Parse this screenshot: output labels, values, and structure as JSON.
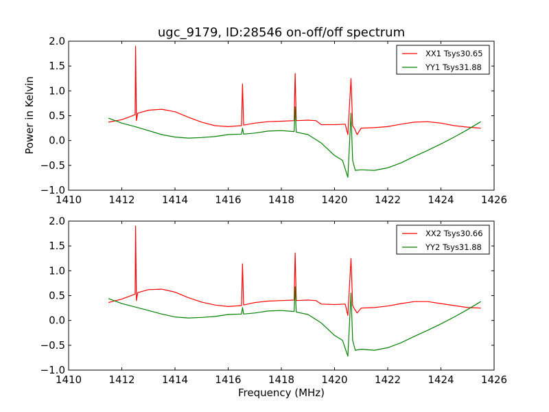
{
  "chart_data": [
    {
      "type": "line",
      "title": "ugc_9179, ID:28546 on-off/off spectrum",
      "xlabel": "",
      "ylabel": "Power in Kelvin",
      "xlim": [
        1410,
        1426
      ],
      "ylim": [
        -1.0,
        2.0
      ],
      "xticks": [
        "1410",
        "1412",
        "1414",
        "1416",
        "1418",
        "1420",
        "1422",
        "1424",
        "1426"
      ],
      "yticks": [
        "2.0",
        "1.5",
        "1.0",
        "0.5",
        "0.0",
        "−0.5",
        "−1.0"
      ],
      "grid": false,
      "legend": "top-right",
      "series": [
        {
          "name": "XX1 Tsys30.65",
          "color": "#ff0000",
          "x": [
            1411.5,
            1412.0,
            1412.5,
            1412.52,
            1412.55,
            1412.6,
            1413.0,
            1413.5,
            1414.0,
            1414.5,
            1415.0,
            1415.5,
            1416.0,
            1416.5,
            1416.54,
            1416.58,
            1417.0,
            1417.5,
            1418.0,
            1418.48,
            1418.52,
            1418.56,
            1419.0,
            1419.3,
            1419.5,
            1420.0,
            1420.4,
            1420.5,
            1420.62,
            1420.68,
            1420.75,
            1420.85,
            1421.0,
            1421.5,
            1422.0,
            1422.5,
            1423.0,
            1423.5,
            1424.0,
            1424.5,
            1425.0,
            1425.5
          ],
          "y": [
            0.37,
            0.42,
            0.52,
            1.9,
            0.4,
            0.55,
            0.61,
            0.63,
            0.58,
            0.47,
            0.37,
            0.3,
            0.28,
            0.3,
            1.14,
            0.31,
            0.35,
            0.38,
            0.39,
            0.4,
            1.35,
            0.4,
            0.41,
            0.4,
            0.32,
            0.32,
            0.33,
            0.12,
            1.25,
            0.3,
            0.24,
            0.12,
            0.25,
            0.26,
            0.28,
            0.33,
            0.37,
            0.38,
            0.35,
            0.3,
            0.27,
            0.25
          ]
        },
        {
          "name": "YY1 Tsys31.88",
          "color": "#008000",
          "x": [
            1411.5,
            1412.0,
            1412.5,
            1413.0,
            1413.5,
            1414.0,
            1414.5,
            1415.0,
            1415.5,
            1416.0,
            1416.5,
            1416.54,
            1416.58,
            1417.0,
            1417.5,
            1418.0,
            1418.48,
            1418.52,
            1418.56,
            1419.0,
            1419.5,
            1420.0,
            1420.3,
            1420.5,
            1420.62,
            1420.68,
            1420.78,
            1421.0,
            1421.5,
            1422.0,
            1422.5,
            1423.0,
            1423.5,
            1424.0,
            1424.5,
            1425.0,
            1425.5
          ],
          "y": [
            0.45,
            0.35,
            0.28,
            0.2,
            0.12,
            0.07,
            0.05,
            0.06,
            0.08,
            0.12,
            0.13,
            0.25,
            0.13,
            0.15,
            0.19,
            0.2,
            0.18,
            0.68,
            0.17,
            0.12,
            -0.05,
            -0.3,
            -0.4,
            -0.74,
            0.55,
            -0.4,
            -0.6,
            -0.59,
            -0.6,
            -0.55,
            -0.45,
            -0.32,
            -0.2,
            -0.07,
            0.07,
            0.22,
            0.38
          ]
        }
      ]
    },
    {
      "type": "line",
      "title": "",
      "xlabel": "Frequency (MHz)",
      "ylabel": "",
      "xlim": [
        1410,
        1426
      ],
      "ylim": [
        -1.0,
        2.0
      ],
      "xticks": [
        "1410",
        "1412",
        "1414",
        "1416",
        "1418",
        "1420",
        "1422",
        "1424",
        "1426"
      ],
      "yticks": [
        "2.0",
        "1.5",
        "1.0",
        "0.5",
        "0.0",
        "−0.5",
        "−1.0"
      ],
      "grid": false,
      "legend": "top-right",
      "series": [
        {
          "name": "XX2 Tsys30.66",
          "color": "#ff0000",
          "x": [
            1411.5,
            1412.0,
            1412.5,
            1412.52,
            1412.55,
            1412.6,
            1413.0,
            1413.5,
            1414.0,
            1414.5,
            1415.0,
            1415.5,
            1416.0,
            1416.5,
            1416.54,
            1416.58,
            1417.0,
            1417.5,
            1418.0,
            1418.48,
            1418.52,
            1418.56,
            1419.0,
            1419.3,
            1419.5,
            1420.0,
            1420.4,
            1420.5,
            1420.62,
            1420.68,
            1420.75,
            1420.85,
            1421.0,
            1421.5,
            1422.0,
            1422.5,
            1423.0,
            1423.5,
            1424.0,
            1424.5,
            1425.0,
            1425.5
          ],
          "y": [
            0.36,
            0.43,
            0.53,
            1.9,
            0.4,
            0.56,
            0.62,
            0.63,
            0.57,
            0.46,
            0.37,
            0.31,
            0.28,
            0.3,
            1.14,
            0.31,
            0.36,
            0.39,
            0.4,
            0.41,
            1.36,
            0.4,
            0.41,
            0.4,
            0.33,
            0.32,
            0.33,
            0.1,
            1.25,
            0.3,
            0.23,
            0.15,
            0.25,
            0.26,
            0.29,
            0.34,
            0.38,
            0.38,
            0.34,
            0.3,
            0.26,
            0.25
          ]
        },
        {
          "name": "YY2 Tsys31.88",
          "color": "#008000",
          "x": [
            1411.5,
            1412.0,
            1412.5,
            1413.0,
            1413.5,
            1414.0,
            1414.5,
            1415.0,
            1415.5,
            1416.0,
            1416.5,
            1416.54,
            1416.58,
            1417.0,
            1417.5,
            1418.0,
            1418.48,
            1418.52,
            1418.56,
            1419.0,
            1419.5,
            1420.0,
            1420.3,
            1420.5,
            1420.62,
            1420.68,
            1420.78,
            1421.0,
            1421.5,
            1422.0,
            1422.5,
            1423.0,
            1423.5,
            1424.0,
            1424.5,
            1425.0,
            1425.5
          ],
          "y": [
            0.44,
            0.34,
            0.27,
            0.2,
            0.13,
            0.07,
            0.05,
            0.06,
            0.08,
            0.12,
            0.13,
            0.26,
            0.13,
            0.15,
            0.19,
            0.2,
            0.18,
            0.68,
            0.17,
            0.12,
            -0.05,
            -0.3,
            -0.4,
            -0.72,
            0.55,
            -0.4,
            -0.6,
            -0.58,
            -0.6,
            -0.55,
            -0.45,
            -0.32,
            -0.2,
            -0.07,
            0.07,
            0.22,
            0.38
          ]
        }
      ]
    }
  ]
}
